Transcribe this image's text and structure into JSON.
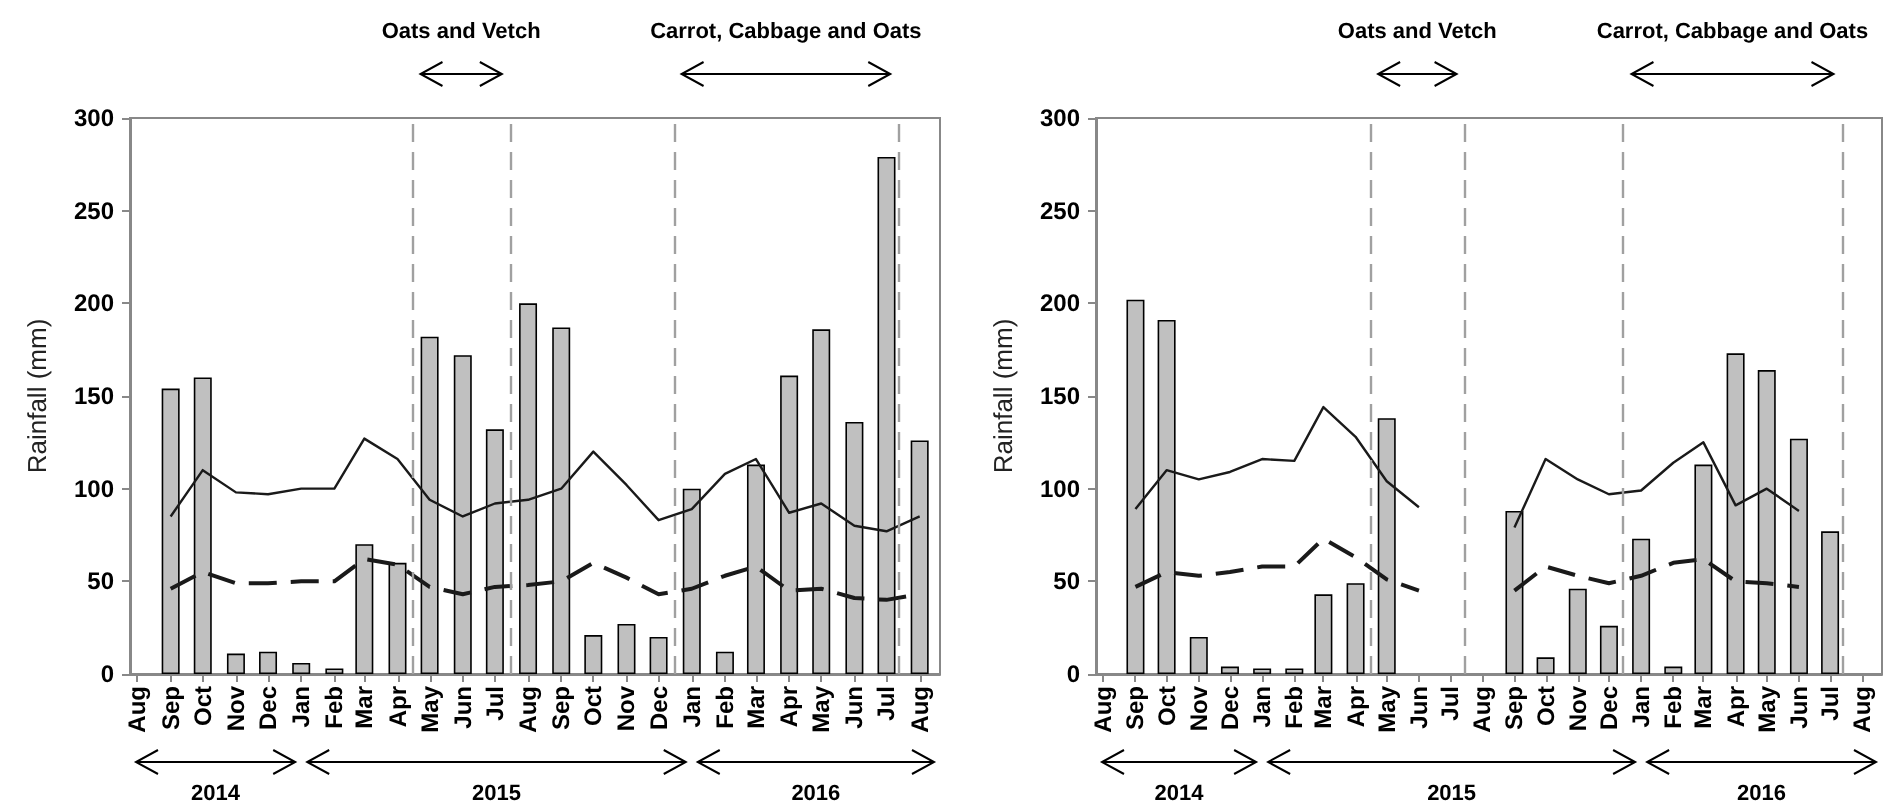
{
  "chart_data": [
    {
      "type": "bar",
      "ylabel": "Rainfall (mm)",
      "marker": "none",
      "grid": false,
      "x": [
        "2014-09",
        "2014-10",
        "2014-11",
        "2014-12",
        "2015-01",
        "2015-02",
        "2015-03",
        "2015-04",
        "2015-05",
        "2015-06",
        "2015-07",
        "2015-08",
        "2015-09",
        "2015-10",
        "2015-11",
        "2015-12",
        "2016-01",
        "2016-02",
        "2016-03",
        "2016-04",
        "2016-05",
        "2016-06",
        "2016-07",
        "2016-08"
      ],
      "series": [
        {
          "color": "#c0c0c0",
          "values": [
            154,
            160,
            11,
            12,
            6,
            3,
            70,
            60,
            182,
            172,
            132,
            200,
            187,
            21,
            27,
            20,
            100,
            12,
            113,
            161,
            186,
            136,
            279,
            126
          ]
        },
        {
          "type": "line",
          "color": "#1a1a1a",
          "line_style": "solid",
          "values": [
            85,
            110,
            98,
            97,
            100,
            100,
            127,
            116,
            94,
            85,
            92,
            94,
            100,
            120,
            102,
            83,
            89,
            108,
            116,
            87,
            92,
            80,
            77,
            85
          ]
        },
        {
          "type": "line",
          "color": "#1a1a1a",
          "line_style": "dashed",
          "values": [
            46,
            55,
            49,
            49,
            50,
            50,
            62,
            59,
            47,
            43,
            47,
            48,
            50,
            60,
            52,
            43,
            46,
            53,
            58,
            45,
            46,
            41,
            40,
            43
          ]
        }
      ],
      "xlim": [
        "2014-07-25",
        "2016-08-20"
      ],
      "xticks": [
        {
          "value": "2014-08",
          "label": "Aug"
        },
        {
          "value": "2014-09",
          "label": "Sep"
        },
        {
          "value": "2014-10",
          "label": "Oct"
        },
        {
          "value": "2014-11",
          "label": "Nov"
        },
        {
          "value": "2014-12",
          "label": "Dec"
        },
        {
          "value": "2015-01",
          "label": "Jan"
        },
        {
          "value": "2015-02",
          "label": "Feb"
        },
        {
          "value": "2015-03",
          "label": "Mar"
        },
        {
          "value": "2015-04",
          "label": "Apr"
        },
        {
          "value": "2015-05",
          "label": "May"
        },
        {
          "value": "2015-06",
          "label": "Jun"
        },
        {
          "value": "2015-07",
          "label": "Jul"
        },
        {
          "value": "2015-08",
          "label": "Aug"
        },
        {
          "value": "2015-09",
          "label": "Sep"
        },
        {
          "value": "2015-10",
          "label": "Oct"
        },
        {
          "value": "2015-11",
          "label": "Nov"
        },
        {
          "value": "2015-12",
          "label": "Dec"
        },
        {
          "value": "2016-01",
          "label": "Jan"
        },
        {
          "value": "2016-02",
          "label": "Feb"
        },
        {
          "value": "2016-03",
          "label": "Mar"
        },
        {
          "value": "2016-04",
          "label": "Apr"
        },
        {
          "value": "2016-05",
          "label": "May"
        },
        {
          "value": "2016-06",
          "label": "Jun"
        },
        {
          "value": "2016-07",
          "label": "Jul"
        },
        {
          "value": "2016-08",
          "label": "Aug"
        }
      ],
      "ylim": [
        0,
        300
      ],
      "yticks": [
        0,
        50,
        100,
        150,
        200,
        250,
        300
      ],
      "ref_lines": [
        {
          "axis": "x",
          "value": "2015-04-15",
          "color": "#a0a0a0",
          "line_style": "dashed"
        },
        {
          "axis": "x",
          "value": "2015-07-15",
          "color": "#a0a0a0",
          "line_style": "dashed"
        },
        {
          "axis": "x",
          "value": "2015-12-15",
          "color": "#a0a0a0",
          "line_style": "dashed"
        },
        {
          "axis": "x",
          "value": "2016-07-12",
          "color": "#a0a0a0",
          "line_style": "dashed"
        }
      ],
      "annotations": [
        "Oats and Vetch",
        "Carrot, Cabbage and Oats",
        "2014",
        "2015",
        "2016"
      ]
    },
    {
      "type": "bar",
      "ylabel": "Rainfall (mm)",
      "marker": "none",
      "grid": false,
      "x": [
        "2014-09",
        "2014-10",
        "2014-11",
        "2014-12",
        "2015-01",
        "2015-02",
        "2015-03",
        "2015-04",
        "2015-05",
        "2015-06",
        "2015-07",
        "2015-08",
        "2015-09",
        "2015-10",
        "2015-11",
        "2015-12",
        "2016-01",
        "2016-02",
        "2016-03",
        "2016-04",
        "2016-05",
        "2016-06",
        "2016-07"
      ],
      "series": [
        {
          "color": "#c0c0c0",
          "values": [
            202,
            191,
            20,
            4,
            3,
            3,
            43,
            49,
            138,
            null,
            null,
            null,
            88,
            9,
            46,
            26,
            73,
            4,
            113,
            173,
            164,
            127,
            77
          ]
        },
        {
          "type": "line",
          "color": "#1a1a1a",
          "line_style": "solid",
          "values": [
            89,
            110,
            105,
            109,
            116,
            115,
            144,
            128,
            104,
            90,
            null,
            null,
            79,
            116,
            105,
            97,
            99,
            114,
            125,
            91,
            100,
            88,
            null
          ]
        },
        {
          "type": "line",
          "color": "#1a1a1a",
          "line_style": "dashed",
          "values": [
            47,
            55,
            53,
            55,
            58,
            58,
            73,
            63,
            51,
            45,
            null,
            null,
            45,
            58,
            53,
            49,
            53,
            60,
            62,
            50,
            49,
            47,
            null
          ]
        }
      ],
      "xlim": [
        "2014-07-25",
        "2016-08-20"
      ],
      "xticks": [
        {
          "value": "2014-08",
          "label": "Aug"
        },
        {
          "value": "2014-09",
          "label": "Sep"
        },
        {
          "value": "2014-10",
          "label": "Oct"
        },
        {
          "value": "2014-11",
          "label": "Nov"
        },
        {
          "value": "2014-12",
          "label": "Dec"
        },
        {
          "value": "2015-01",
          "label": "Jan"
        },
        {
          "value": "2015-02",
          "label": "Feb"
        },
        {
          "value": "2015-03",
          "label": "Mar"
        },
        {
          "value": "2015-04",
          "label": "Apr"
        },
        {
          "value": "2015-05",
          "label": "May"
        },
        {
          "value": "2015-06",
          "label": "Jun"
        },
        {
          "value": "2015-07",
          "label": "Jul"
        },
        {
          "value": "2015-08",
          "label": "Aug"
        },
        {
          "value": "2015-09",
          "label": "Sep"
        },
        {
          "value": "2015-10",
          "label": "Oct"
        },
        {
          "value": "2015-11",
          "label": "Nov"
        },
        {
          "value": "2015-12",
          "label": "Dec"
        },
        {
          "value": "2016-01",
          "label": "Jan"
        },
        {
          "value": "2016-02",
          "label": "Feb"
        },
        {
          "value": "2016-03",
          "label": "Mar"
        },
        {
          "value": "2016-04",
          "label": "Apr"
        },
        {
          "value": "2016-05",
          "label": "May"
        },
        {
          "value": "2016-06",
          "label": "Jun"
        },
        {
          "value": "2016-07",
          "label": "Jul"
        },
        {
          "value": "2016-08",
          "label": "Aug"
        }
      ],
      "ylim": [
        0,
        300
      ],
      "yticks": [
        0,
        50,
        100,
        150,
        200,
        250,
        300
      ],
      "ref_lines": [
        {
          "axis": "x",
          "value": "2015-04-15",
          "color": "#a0a0a0",
          "line_style": "dashed"
        },
        {
          "axis": "x",
          "value": "2015-07-15",
          "color": "#a0a0a0",
          "line_style": "dashed"
        },
        {
          "axis": "x",
          "value": "2015-12-15",
          "color": "#a0a0a0",
          "line_style": "dashed"
        },
        {
          "axis": "x",
          "value": "2016-07-12",
          "color": "#a0a0a0",
          "line_style": "dashed"
        }
      ],
      "annotations": [
        "Oats and Vetch",
        "Carrot, Cabbage and Oats",
        "2014",
        "2015",
        "2016"
      ]
    }
  ]
}
